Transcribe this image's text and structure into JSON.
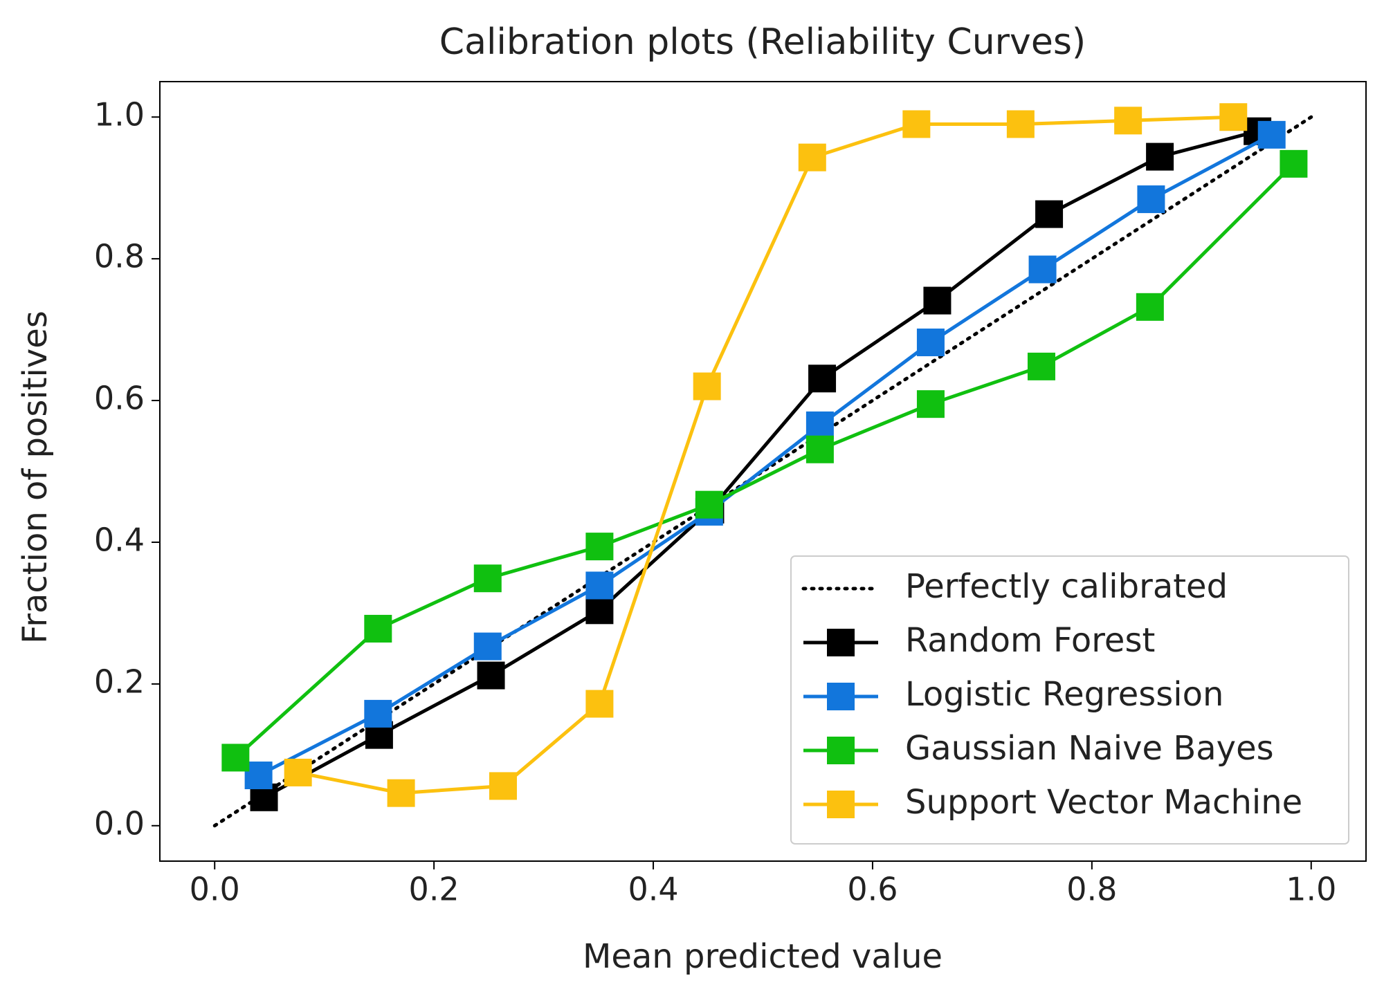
{
  "chart_data": {
    "type": "line",
    "title": "Calibration plots (Reliability Curves)",
    "xlabel": "Mean predicted value",
    "ylabel": "Fraction of positives",
    "xlim": [
      -0.05,
      1.05
    ],
    "ylim": [
      -0.05,
      1.05
    ],
    "xticks": [
      {
        "value": 0,
        "label": "0.0"
      },
      0.2,
      0.4,
      0.6,
      0.8,
      {
        "value": 1,
        "label": "1.0"
      }
    ],
    "yticks": [
      {
        "value": 0,
        "label": "0.0"
      },
      0.2,
      0.4,
      0.6,
      0.8,
      {
        "value": 1,
        "label": "1.0"
      }
    ],
    "grid": false,
    "legend": "lower right",
    "series": [
      {
        "name": "Perfectly calibrated",
        "color": "#000000",
        "linestyle": "dotted",
        "marker": "none",
        "x": [
          0,
          1
        ],
        "values": [
          0,
          1
        ]
      },
      {
        "name": "Random Forest",
        "color": "#000000",
        "linestyle": "solid",
        "marker": "square",
        "x": [
          0.045,
          0.15,
          0.252,
          0.351,
          0.452,
          0.554,
          0.659,
          0.761,
          0.862,
          0.951
        ],
        "values": [
          0.04,
          0.128,
          0.212,
          0.304,
          0.446,
          0.631,
          0.741,
          0.863,
          0.944,
          0.98
        ]
      },
      {
        "name": "Logistic Regression",
        "color": "#1276dc",
        "linestyle": "solid",
        "marker": "square",
        "x": [
          0.04,
          0.149,
          0.249,
          0.351,
          0.451,
          0.552,
          0.653,
          0.755,
          0.854,
          0.964
        ],
        "values": [
          0.071,
          0.158,
          0.253,
          0.339,
          0.443,
          0.565,
          0.682,
          0.785,
          0.884,
          0.975
        ]
      },
      {
        "name": "Gaussian Naive Bayes",
        "color": "#10c010",
        "linestyle": "solid",
        "marker": "square",
        "x": [
          0.019,
          0.149,
          0.249,
          0.351,
          0.451,
          0.552,
          0.653,
          0.754,
          0.853,
          0.984
        ],
        "values": [
          0.096,
          0.278,
          0.349,
          0.394,
          0.453,
          0.531,
          0.595,
          0.648,
          0.732,
          0.934
        ]
      },
      {
        "name": "Support Vector Machine",
        "color": "#fcc10f",
        "linestyle": "solid",
        "marker": "square",
        "x": [
          0.076,
          0.17,
          0.263,
          0.351,
          0.449,
          0.545,
          0.64,
          0.735,
          0.833,
          0.929
        ],
        "values": [
          0.075,
          0.046,
          0.056,
          0.172,
          0.62,
          0.943,
          0.99,
          0.99,
          0.995,
          1.0
        ]
      }
    ]
  }
}
